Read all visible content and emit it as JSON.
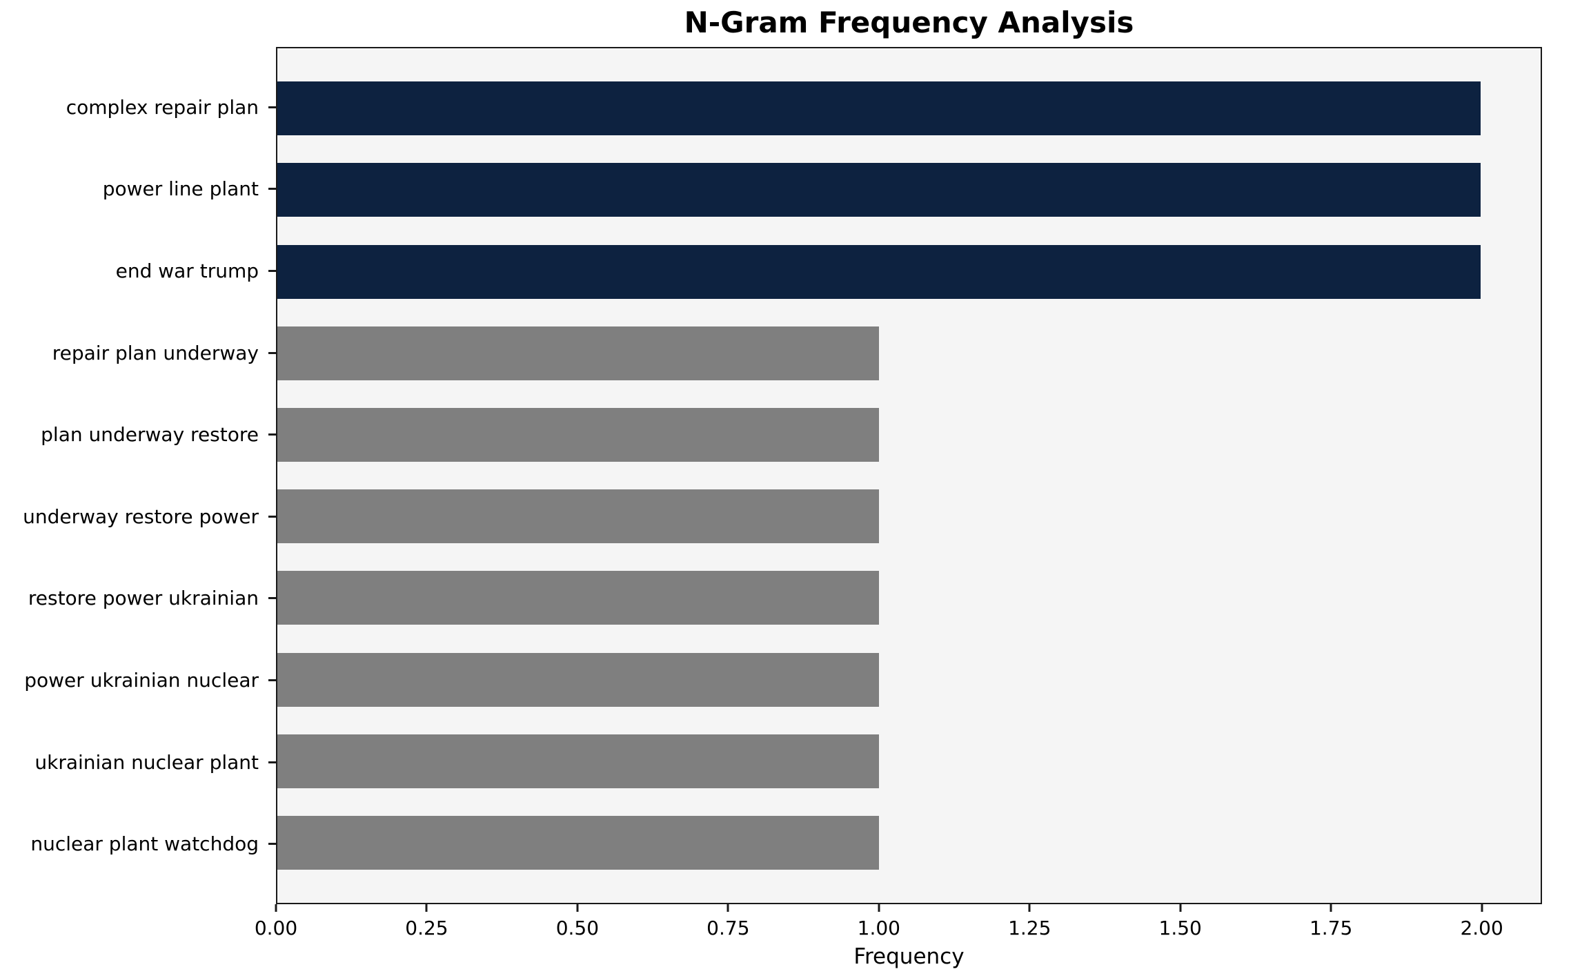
{
  "title": "N-Gram Frequency Analysis",
  "chart_data": {
    "type": "bar",
    "orientation": "horizontal",
    "title": "N-Gram Frequency Analysis",
    "xlabel": "Frequency",
    "ylabel": "",
    "categories": [
      "complex repair plan",
      "power line plant",
      "end war trump",
      "repair plan underway",
      "plan underway restore",
      "underway restore power",
      "restore power ukrainian",
      "power ukrainian nuclear",
      "ukrainian nuclear plant",
      "nuclear plant watchdog"
    ],
    "values": [
      2,
      2,
      2,
      1,
      1,
      1,
      1,
      1,
      1,
      1
    ],
    "bar_colors": [
      "#0d2240",
      "#0d2240",
      "#0d2240",
      "#7f7f7f",
      "#7f7f7f",
      "#7f7f7f",
      "#7f7f7f",
      "#7f7f7f",
      "#7f7f7f",
      "#7f7f7f"
    ],
    "xlim": [
      0,
      2.1
    ],
    "xticks": {
      "values": [
        0,
        0.25,
        0.5,
        0.75,
        1,
        1.25,
        1.5,
        1.75,
        2
      ],
      "labels": [
        "0.00",
        "0.25",
        "0.50",
        "0.75",
        "1.00",
        "1.25",
        "1.50",
        "1.75",
        "2.00"
      ]
    },
    "grid": false,
    "legend": null,
    "colors": {
      "highlight_bar": "#0d2240",
      "default_bar": "#7f7f7f",
      "plot_background": "#f5f5f5",
      "page_background": "#ffffff",
      "axis": "#1a1a1a"
    }
  }
}
